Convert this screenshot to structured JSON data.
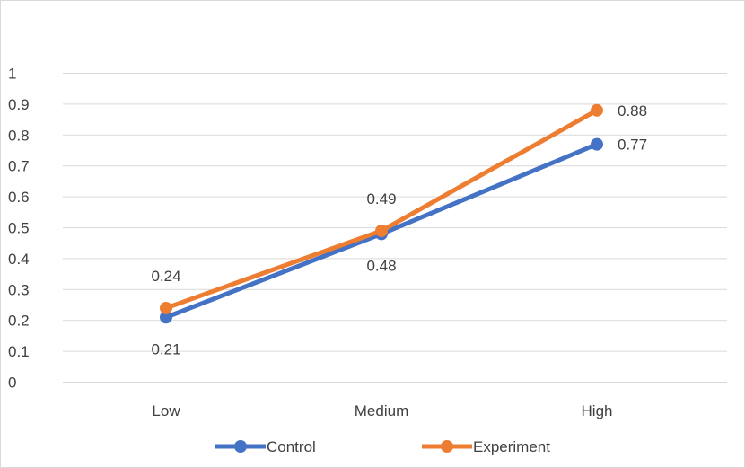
{
  "chart_data": {
    "type": "line",
    "title": "",
    "xlabel": "",
    "ylabel": "",
    "categories": [
      "Low",
      "Medium",
      "High"
    ],
    "ylim": [
      0,
      1
    ],
    "yticks": [
      "0",
      "0.1",
      "0.2",
      "0.3",
      "0.4",
      "0.5",
      "0.6",
      "0.7",
      "0.8",
      "0.9",
      "1"
    ],
    "grid": true,
    "legend_position": "bottom",
    "series": [
      {
        "name": "Control",
        "values": [
          0.21,
          0.48,
          0.77
        ],
        "labels": [
          "0.21",
          "0.48",
          "0.77"
        ],
        "color": "#4472c4"
      },
      {
        "name": "Experiment",
        "values": [
          0.24,
          0.49,
          0.88
        ],
        "labels": [
          "0.24",
          "0.49",
          "0.88"
        ],
        "color": "#ed7d31"
      }
    ]
  }
}
